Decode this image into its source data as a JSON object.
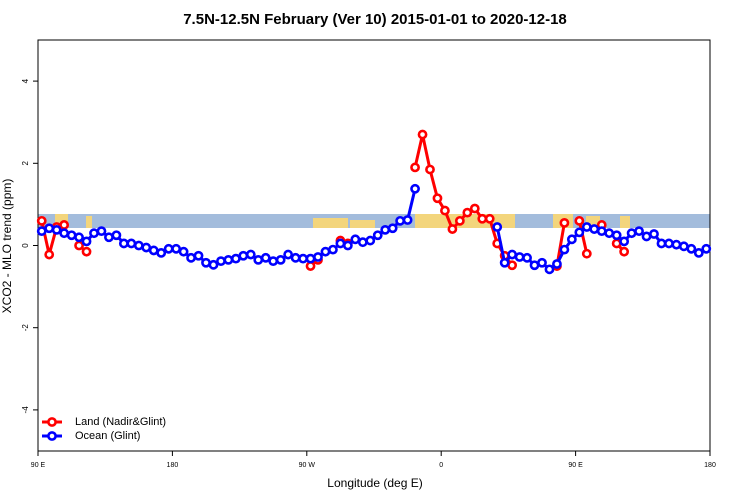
{
  "chart_data": {
    "type": "line",
    "title": "7.5N-12.5N February (Ver 10)   2015-01-01 to 2020-12-18",
    "x_label": "Longitude (deg E)",
    "y_label": "XCO2 - MLO trend (ppm)",
    "x": [
      92.5,
      97.5,
      102.5,
      107.5,
      112.5,
      117.5,
      122.5,
      127.5,
      132.5,
      137.5,
      142.5,
      147.5,
      152.5,
      157.5,
      162.5,
      167.5,
      172.5,
      177.5,
      182.5,
      187.5,
      192.5,
      197.5,
      202.5,
      207.5,
      212.5,
      217.5,
      222.5,
      227.5,
      232.5,
      237.5,
      242.5,
      247.5,
      252.5,
      257.5,
      262.5,
      267.5,
      272.5,
      277.5,
      282.5,
      287.5,
      292.5,
      297.5,
      302.5,
      307.5,
      312.5,
      317.5,
      322.5,
      327.5,
      332.5,
      337.5,
      342.5,
      347.5,
      352.5,
      357.5,
      362.5,
      367.5,
      372.5,
      377.5,
      382.5,
      387.5,
      392.5,
      397.5,
      402.5,
      407.5,
      412.5,
      417.5,
      422.5,
      427.5,
      432.5,
      437.5,
      442.5,
      447.5,
      452.5,
      457.5,
      462.5,
      467.5,
      472.5,
      477.5,
      482.5,
      487.5,
      492.5,
      497.5,
      502.5,
      507.5,
      512.5,
      517.5,
      522.5,
      527.5,
      532.5,
      537.5
    ],
    "series": [
      {
        "name": "Land (Nadir&Glint)",
        "color": "#ff0000",
        "values": [
          0.6,
          -0.22,
          0.45,
          0.5,
          null,
          0.0,
          -0.15,
          null,
          null,
          null,
          null,
          null,
          null,
          null,
          null,
          null,
          null,
          null,
          null,
          null,
          null,
          null,
          null,
          null,
          null,
          null,
          null,
          null,
          null,
          null,
          null,
          null,
          null,
          null,
          null,
          null,
          -0.5,
          -0.35,
          null,
          null,
          0.12,
          0.05,
          null,
          null,
          null,
          null,
          null,
          null,
          null,
          null,
          1.9,
          2.7,
          1.85,
          1.15,
          0.85,
          0.4,
          0.6,
          0.8,
          0.9,
          0.65,
          0.65,
          0.05,
          -0.25,
          -0.48,
          null,
          null,
          null,
          null,
          null,
          -0.5,
          0.55,
          null,
          0.6,
          -0.2,
          null,
          0.5,
          null,
          0.05,
          -0.15,
          null,
          null,
          null,
          null,
          null,
          null,
          null,
          null,
          null,
          null,
          null
        ]
      },
      {
        "name": "Ocean (Glint)",
        "color": "#0000ff",
        "values": [
          0.35,
          0.42,
          0.38,
          0.3,
          0.25,
          0.2,
          0.1,
          0.3,
          0.35,
          0.2,
          0.25,
          0.05,
          0.05,
          0.0,
          -0.05,
          -0.12,
          -0.18,
          -0.08,
          -0.08,
          -0.15,
          -0.3,
          -0.25,
          -0.42,
          -0.47,
          -0.38,
          -0.35,
          -0.32,
          -0.25,
          -0.22,
          -0.35,
          -0.3,
          -0.38,
          -0.35,
          -0.22,
          -0.3,
          -0.32,
          -0.32,
          -0.28,
          -0.15,
          -0.1,
          0.05,
          0.0,
          0.15,
          0.08,
          0.12,
          0.25,
          0.38,
          0.42,
          0.6,
          0.62,
          1.38,
          null,
          null,
          null,
          null,
          null,
          null,
          null,
          null,
          null,
          null,
          0.45,
          -0.42,
          -0.22,
          -0.28,
          -0.3,
          -0.48,
          -0.42,
          -0.58,
          -0.45,
          -0.1,
          0.15,
          0.32,
          0.45,
          0.4,
          0.35,
          0.3,
          0.25,
          0.1,
          0.3,
          0.35,
          0.22,
          0.28,
          0.05,
          0.05,
          0.02,
          -0.02,
          -0.08,
          -0.18,
          -0.08
        ]
      }
    ],
    "xlim": [
      90,
      540
    ],
    "xticks": [
      {
        "value": 90,
        "label": "90 E"
      },
      {
        "value": 180,
        "label": "180"
      },
      {
        "value": 270,
        "label": "90 W"
      },
      {
        "value": 360,
        "label": "0"
      },
      {
        "value": 450,
        "label": "90 E"
      },
      {
        "value": 540,
        "label": "180"
      }
    ],
    "ylim": [
      -5,
      5
    ],
    "yticks": [
      -4,
      -2,
      0,
      2,
      4
    ],
    "legend": "bottom-left"
  }
}
